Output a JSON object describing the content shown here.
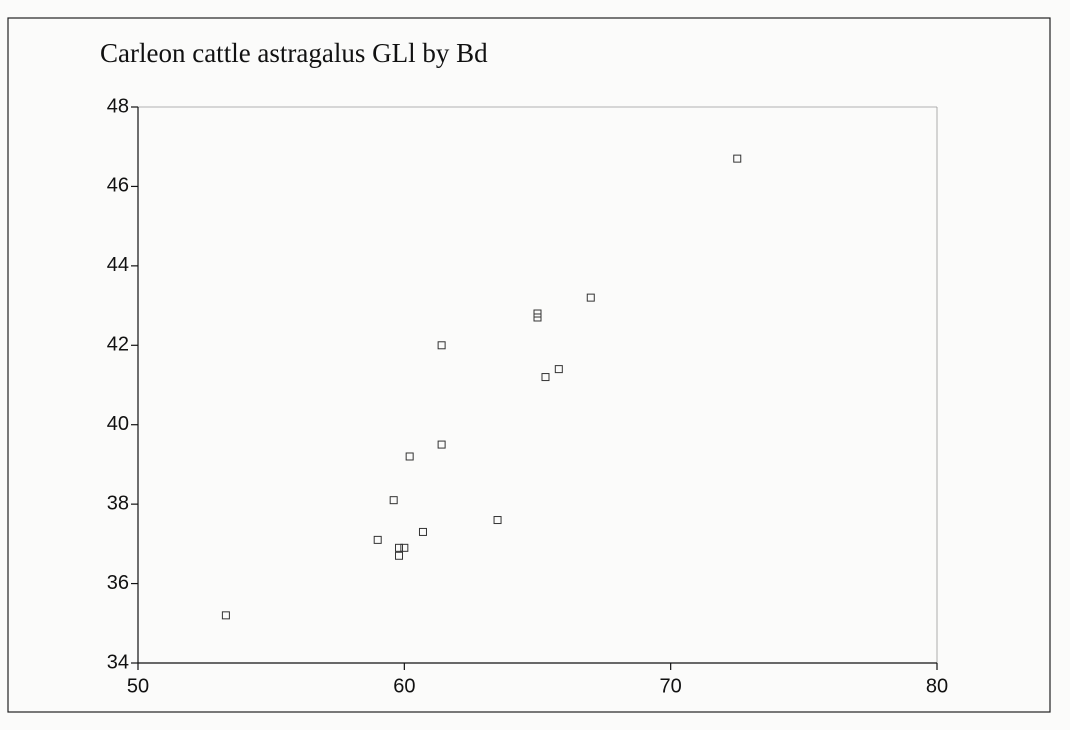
{
  "chart_data": {
    "type": "scatter",
    "title": "Carleon cattle astragalus GLl by Bd",
    "series": [
      {
        "color": "#333333",
        "x": [
          53.3,
          59.0,
          59.6,
          59.8,
          60.0,
          59.8,
          60.2,
          60.7,
          61.4,
          61.4,
          63.5,
          65.0,
          65.0,
          65.3,
          65.8,
          67.0,
          72.5
        ],
        "values": [
          35.2,
          37.1,
          38.1,
          36.9,
          36.9,
          36.7,
          39.2,
          37.3,
          42.0,
          39.5,
          37.6,
          42.8,
          42.7,
          41.2,
          41.4,
          43.2,
          46.7
        ]
      }
    ],
    "xlim": [
      50,
      80
    ],
    "xticks": [
      50,
      60,
      70,
      80
    ],
    "ylim": [
      34,
      48
    ],
    "yticks": [
      34,
      36,
      38,
      40,
      42,
      44,
      46,
      48
    ]
  }
}
